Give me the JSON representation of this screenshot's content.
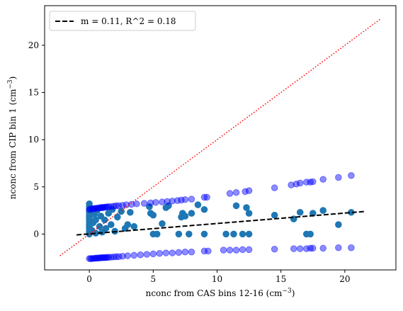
{
  "chart_data": {
    "type": "scatter",
    "title": "",
    "xlabel_main": "nconc from CAS bins 12-16 (cm",
    "xlabel_sup": "−3",
    "xlabel_end": ")",
    "ylabel_main": "nconc from CIP bin 1 (cm",
    "ylabel_sup": "−3",
    "ylabel_end": ")",
    "xlim": [
      -3.5,
      24
    ],
    "ylim": [
      -3.8,
      24.2
    ],
    "xticks": [
      0,
      5,
      10,
      15,
      20
    ],
    "yticks": [
      0,
      5,
      10,
      15,
      20
    ],
    "grid": false,
    "legend": {
      "placement": "top-left",
      "label": "m = 0.11, R^2 = 0.18"
    },
    "fit_line": {
      "slope": 0.11,
      "intercept": 0.02,
      "x_range": [
        -1.0,
        21.5
      ],
      "color": "#000000",
      "style": "dashed"
    },
    "one_to_one_line": {
      "x_range": [
        -2.3,
        22.8
      ],
      "color": "#ff0000",
      "style": "dotted"
    },
    "series": [
      {
        "color": "#1f77b4",
        "opacity": 1.0,
        "points": [
          [
            0,
            0
          ],
          [
            0,
            0.3
          ],
          [
            0,
            0.6
          ],
          [
            0,
            1.0
          ],
          [
            0,
            1.3
          ],
          [
            0,
            1.6
          ],
          [
            0,
            2.0
          ],
          [
            0,
            2.3
          ],
          [
            0,
            2.6
          ],
          [
            0,
            2.9
          ],
          [
            0,
            3.2
          ],
          [
            0,
            0.1
          ],
          [
            0,
            0.8
          ],
          [
            0,
            1.8
          ],
          [
            0.2,
            0.4
          ],
          [
            0.3,
            1.2
          ],
          [
            0.4,
            2.1
          ],
          [
            0.5,
            0.1
          ],
          [
            0.5,
            1.5
          ],
          [
            0.6,
            2.5
          ],
          [
            0.8,
            0.8
          ],
          [
            0.9,
            1.9
          ],
          [
            1.0,
            0.2
          ],
          [
            1.0,
            2.8
          ],
          [
            1.2,
            1.5
          ],
          [
            1.3,
            0.6
          ],
          [
            1.5,
            2.2
          ],
          [
            1.7,
            1.0
          ],
          [
            1.8,
            2.6
          ],
          [
            2.0,
            0.3
          ],
          [
            2.2,
            1.8
          ],
          [
            2.5,
            2.4
          ],
          [
            2.8,
            0.6
          ],
          [
            3.0,
            1.0
          ],
          [
            3.2,
            2.3
          ],
          [
            3.5,
            0.8
          ],
          [
            4.7,
            2.9
          ],
          [
            4.8,
            2.2
          ],
          [
            5.0,
            2.0
          ],
          [
            5.0,
            0.0
          ],
          [
            5.3,
            0.0
          ],
          [
            5.7,
            1.1
          ],
          [
            6.0,
            2.8
          ],
          [
            6.2,
            3.0
          ],
          [
            7.0,
            0.0
          ],
          [
            7.2,
            1.8
          ],
          [
            7.3,
            2.2
          ],
          [
            7.5,
            1.9
          ],
          [
            7.8,
            0.0
          ],
          [
            8.0,
            2.2
          ],
          [
            8.5,
            3.1
          ],
          [
            9.0,
            2.6
          ],
          [
            9.0,
            0.0
          ],
          [
            10.7,
            0.0
          ],
          [
            11.3,
            0.0
          ],
          [
            11.5,
            3.0
          ],
          [
            12.0,
            0.0
          ],
          [
            12.3,
            2.8
          ],
          [
            12.5,
            2.2
          ],
          [
            12.5,
            0.0
          ],
          [
            14.5,
            2.0
          ],
          [
            16.0,
            1.6
          ],
          [
            16.5,
            2.3
          ],
          [
            17.0,
            0.0
          ],
          [
            17.3,
            0.0
          ],
          [
            17.5,
            2.2
          ],
          [
            18.3,
            2.5
          ],
          [
            19.5,
            1.0
          ],
          [
            20.5,
            2.3
          ]
        ]
      },
      {
        "color": "#0000ff",
        "opacity": 0.45,
        "points": [
          [
            0,
            2.6
          ],
          [
            0.1,
            2.65
          ],
          [
            0.2,
            2.65
          ],
          [
            0.3,
            2.7
          ],
          [
            0.4,
            2.7
          ],
          [
            0.5,
            2.72
          ],
          [
            0.6,
            2.75
          ],
          [
            0.7,
            2.75
          ],
          [
            0.8,
            2.78
          ],
          [
            0.9,
            2.8
          ],
          [
            1.0,
            2.8
          ],
          [
            1.1,
            2.82
          ],
          [
            1.2,
            2.85
          ],
          [
            1.3,
            2.85
          ],
          [
            1.4,
            2.88
          ],
          [
            1.5,
            2.9
          ],
          [
            1.7,
            2.9
          ],
          [
            1.9,
            2.95
          ],
          [
            2.1,
            3.0
          ],
          [
            2.3,
            3.0
          ],
          [
            2.6,
            3.05
          ],
          [
            2.9,
            3.1
          ],
          [
            3.3,
            3.15
          ],
          [
            3.7,
            3.2
          ],
          [
            4.3,
            3.25
          ],
          [
            4.8,
            3.3
          ],
          [
            5.2,
            3.35
          ],
          [
            5.7,
            3.4
          ],
          [
            6.1,
            3.45
          ],
          [
            6.5,
            3.5
          ],
          [
            6.9,
            3.55
          ],
          [
            7.2,
            3.6
          ],
          [
            7.5,
            3.65
          ],
          [
            8.0,
            3.7
          ],
          [
            9.0,
            3.9
          ],
          [
            9.2,
            3.9
          ],
          [
            11.0,
            4.3
          ],
          [
            11.5,
            4.4
          ],
          [
            12.2,
            4.5
          ],
          [
            12.5,
            4.6
          ],
          [
            14.5,
            4.9
          ],
          [
            15.8,
            5.2
          ],
          [
            16.2,
            5.3
          ],
          [
            16.5,
            5.4
          ],
          [
            17.0,
            5.5
          ],
          [
            17.3,
            5.5
          ],
          [
            17.5,
            5.55
          ],
          [
            18.3,
            5.8
          ],
          [
            19.5,
            6.0
          ],
          [
            20.5,
            6.2
          ],
          [
            0,
            -2.6
          ],
          [
            0.1,
            -2.6
          ],
          [
            0.2,
            -2.6
          ],
          [
            0.3,
            -2.58
          ],
          [
            0.4,
            -2.58
          ],
          [
            0.5,
            -2.55
          ],
          [
            0.6,
            -2.55
          ],
          [
            0.7,
            -2.55
          ],
          [
            0.8,
            -2.52
          ],
          [
            0.9,
            -2.52
          ],
          [
            1.0,
            -2.5
          ],
          [
            1.1,
            -2.5
          ],
          [
            1.2,
            -2.5
          ],
          [
            1.3,
            -2.48
          ],
          [
            1.4,
            -2.48
          ],
          [
            1.5,
            -2.46
          ],
          [
            1.7,
            -2.45
          ],
          [
            1.9,
            -2.43
          ],
          [
            2.1,
            -2.4
          ],
          [
            2.3,
            -2.4
          ],
          [
            2.6,
            -2.35
          ],
          [
            3.0,
            -2.3
          ],
          [
            3.5,
            -2.25
          ],
          [
            4.0,
            -2.2
          ],
          [
            4.5,
            -2.15
          ],
          [
            5.0,
            -2.1
          ],
          [
            5.5,
            -2.05
          ],
          [
            6.0,
            -2.0
          ],
          [
            6.5,
            -2.0
          ],
          [
            7.0,
            -1.95
          ],
          [
            7.5,
            -1.9
          ],
          [
            8.0,
            -1.9
          ],
          [
            9.0,
            -1.8
          ],
          [
            9.3,
            -1.8
          ],
          [
            10.5,
            -1.7
          ],
          [
            11.0,
            -1.7
          ],
          [
            11.5,
            -1.7
          ],
          [
            12.0,
            -1.65
          ],
          [
            12.5,
            -1.65
          ],
          [
            14.5,
            -1.6
          ],
          [
            16.0,
            -1.55
          ],
          [
            16.5,
            -1.55
          ],
          [
            17.0,
            -1.55
          ],
          [
            17.3,
            -1.5
          ],
          [
            17.5,
            -1.5
          ],
          [
            18.3,
            -1.5
          ],
          [
            19.5,
            -1.45
          ],
          [
            20.5,
            -1.45
          ]
        ]
      }
    ]
  }
}
